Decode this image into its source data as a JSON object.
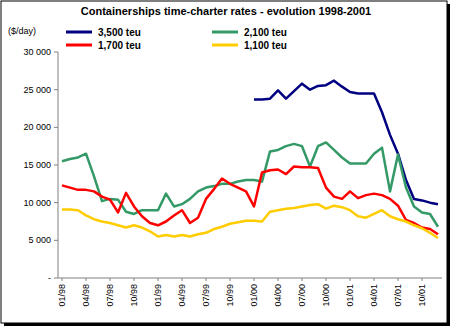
{
  "chart_data": {
    "type": "line",
    "title": "Containerships time-charter rates - evolution 1998-2001",
    "y_label": "($/day)",
    "categories": [
      "01/98",
      null,
      null,
      "04/98",
      null,
      null,
      "07/98",
      null,
      null,
      "10/98",
      null,
      null,
      "01/99",
      null,
      null,
      "04/99",
      null,
      null,
      "07/99",
      null,
      null,
      "10/99",
      null,
      null,
      "01/00",
      null,
      null,
      "04/00",
      null,
      null,
      "07/00",
      null,
      null,
      "10/00",
      null,
      null,
      "01/01",
      null,
      null,
      "04/01",
      null,
      null,
      "07/01",
      null,
      null,
      "10/01",
      null,
      null
    ],
    "series": [
      {
        "name": "3,500 teu",
        "color": "#000080",
        "values": [
          null,
          null,
          null,
          null,
          null,
          null,
          null,
          null,
          null,
          null,
          null,
          null,
          null,
          null,
          null,
          null,
          null,
          null,
          null,
          null,
          null,
          null,
          null,
          null,
          23700,
          23700,
          23800,
          24900,
          23800,
          24800,
          25800,
          25000,
          25500,
          25600,
          26200,
          25400,
          24700,
          24500,
          24500,
          24500,
          22000,
          19000,
          16500,
          13000,
          10500,
          10300,
          10000,
          9800
        ]
      },
      {
        "name": "2,100 teu",
        "color": "#339966",
        "values": [
          15500,
          15800,
          16000,
          16500,
          13500,
          10200,
          10500,
          10400,
          8800,
          8500,
          9000,
          9000,
          9000,
          11200,
          9500,
          9800,
          10500,
          11500,
          12000,
          12200,
          12500,
          12500,
          12800,
          13000,
          13000,
          12800,
          16800,
          17000,
          17500,
          17800,
          17500,
          14800,
          17500,
          18000,
          17000,
          16000,
          15200,
          15200,
          15200,
          16500,
          17300,
          11500,
          16400,
          12000,
          9500,
          8700,
          8500,
          6800
        ]
      },
      {
        "name": "1,700 teu",
        "color": "#ff0000",
        "values": [
          12300,
          12000,
          11700,
          11700,
          11500,
          10800,
          10400,
          8700,
          11300,
          9500,
          8200,
          7300,
          7000,
          7500,
          8300,
          9000,
          7300,
          8000,
          10500,
          11800,
          13200,
          12500,
          12000,
          11500,
          9500,
          14000,
          14300,
          14400,
          13800,
          14800,
          14700,
          14700,
          14600,
          12000,
          10800,
          10500,
          11500,
          10600,
          11000,
          11200,
          11000,
          10500,
          9600,
          7700,
          7300,
          6700,
          6500,
          5800
        ]
      },
      {
        "name": "1,100 teu",
        "color": "#ffcc00",
        "values": [
          9100,
          9100,
          9000,
          8300,
          7800,
          7500,
          7300,
          7000,
          6700,
          7000,
          6700,
          6200,
          5500,
          5700,
          5500,
          5700,
          5500,
          5800,
          6000,
          6500,
          6800,
          7200,
          7400,
          7600,
          7600,
          7500,
          8800,
          9000,
          9200,
          9300,
          9500,
          9700,
          9800,
          9200,
          9600,
          9400,
          9000,
          8200,
          8000,
          8500,
          9000,
          8200,
          7800,
          7500,
          7000,
          6600,
          6000,
          5300
        ]
      }
    ],
    "ylim": [
      0,
      30000
    ],
    "yticks": [
      {
        "value": 0,
        "label": "-"
      },
      {
        "value": 5000,
        "label": "5 000"
      },
      {
        "value": 10000,
        "label": "10 000"
      },
      {
        "value": 15000,
        "label": "15 000"
      },
      {
        "value": 20000,
        "label": "20 000"
      },
      {
        "value": 25000,
        "label": "25 000"
      },
      {
        "value": 30000,
        "label": "30 000"
      }
    ],
    "grid": false,
    "legend": "top"
  }
}
